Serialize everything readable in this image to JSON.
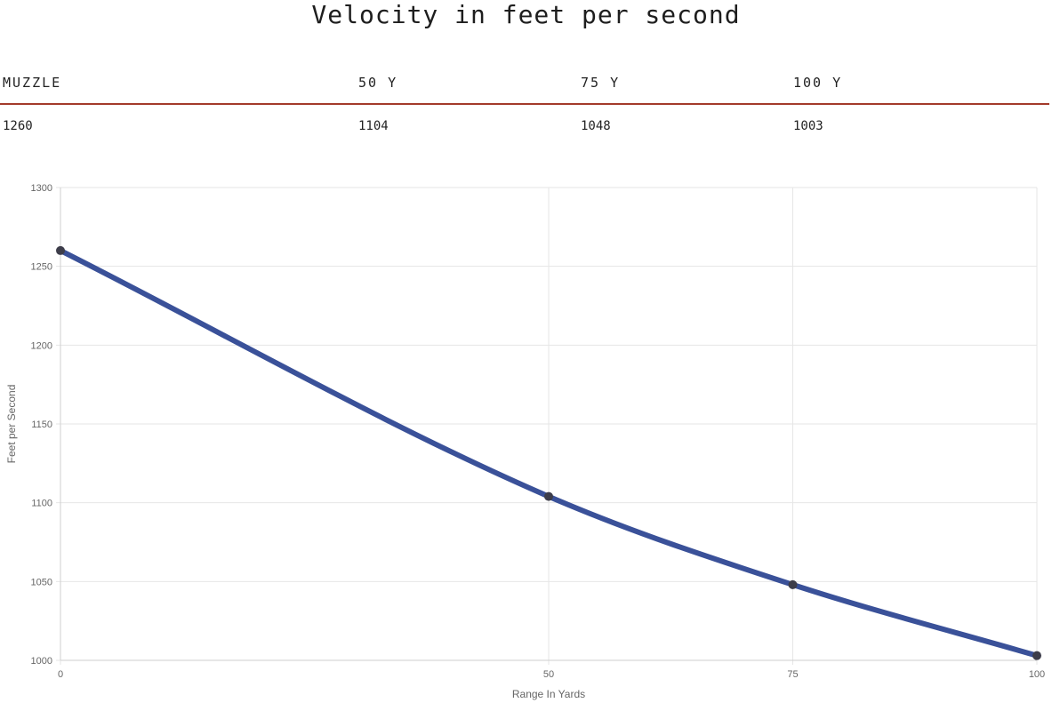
{
  "title": "Velocity in feet per second",
  "table": {
    "headers": [
      "MUZZLE",
      "50 Y",
      "75 Y",
      "100 Y"
    ],
    "values": [
      "1260",
      "1104",
      "1048",
      "1003"
    ]
  },
  "chart_data": {
    "type": "line",
    "x": [
      0,
      50,
      75,
      100
    ],
    "x_ticks": [
      0,
      50,
      75,
      100
    ],
    "series": [
      {
        "name": "Velocity",
        "values": [
          1260,
          1104,
          1048,
          1003
        ]
      }
    ],
    "ylim": [
      1000,
      1300
    ],
    "y_ticks": [
      1000,
      1050,
      1100,
      1150,
      1200,
      1250,
      1300
    ],
    "xlim": [
      0,
      100
    ],
    "xlabel": "Range In Yards",
    "ylabel": "Feet per Second",
    "grid": true,
    "line_color": "#3a5199",
    "point_color": "#3d3d4a"
  }
}
